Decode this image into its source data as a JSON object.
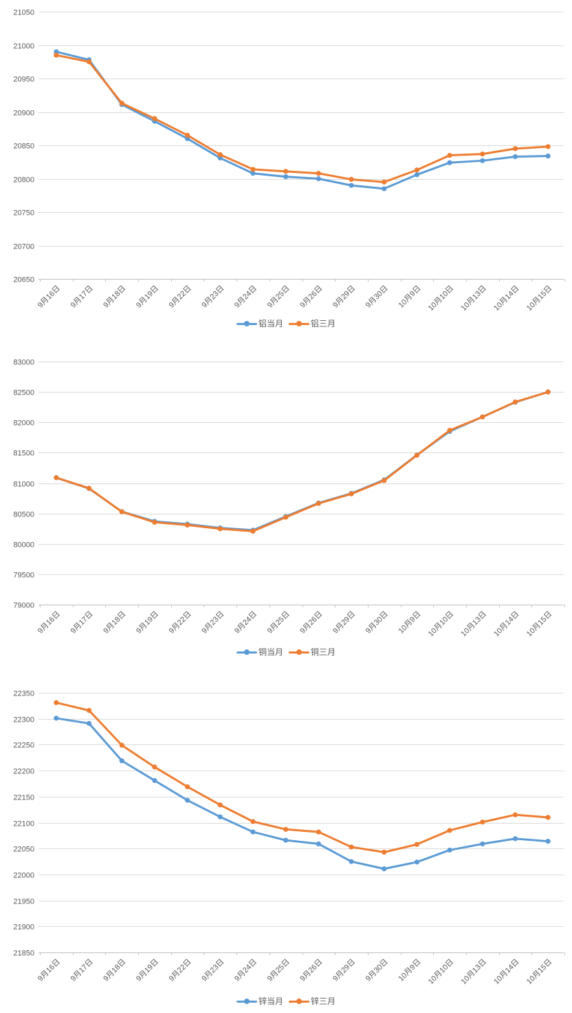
{
  "styles": {
    "grid_color": "#d9d9d9",
    "axis_color": "#bfbfbf",
    "tick_label_color": "#595959",
    "series_blue": "#5b9bd5",
    "series_orange": "#ed7d31",
    "background": "#ffffff"
  },
  "chart_data": [
    {
      "type": "line",
      "title": "",
      "xlabel": "",
      "ylabel": "",
      "grid": true,
      "legend_position": "bottom",
      "ylim": [
        20650,
        21050
      ],
      "ytick_step": 50,
      "categories": [
        "9月16日",
        "9月17日",
        "9月18日",
        "9月19日",
        "9月22日",
        "9月23日",
        "9月24日",
        "9月25日",
        "9月26日",
        "9月29日",
        "9月30日",
        "10月9日",
        "10月10日",
        "10月13日",
        "10月14日",
        "10月15日"
      ],
      "series": [
        {
          "name": "铝当月",
          "color": "#5b9bd5",
          "values": [
            20990,
            20978,
            20911,
            20886,
            20860,
            20831,
            20808,
            20803,
            20800,
            20790,
            20785,
            20806,
            20824,
            20827,
            20833,
            20834
          ]
        },
        {
          "name": "铝三月",
          "color": "#ed7d31",
          "values": [
            20985,
            20975,
            20913,
            20890,
            20865,
            20836,
            20814,
            20811,
            20808,
            20799,
            20795,
            20813,
            20835,
            20837,
            20845,
            20848
          ]
        }
      ]
    },
    {
      "type": "line",
      "title": "",
      "xlabel": "",
      "ylabel": "",
      "grid": true,
      "legend_position": "bottom",
      "ylim": [
        79000,
        83000
      ],
      "ytick_step": 500,
      "categories": [
        "9月16日",
        "9月17日",
        "9月18日",
        "9月19日",
        "9月22日",
        "9月23日",
        "9月24日",
        "9月25日",
        "9月26日",
        "9月29日",
        "9月30日",
        "10月9日",
        "10月10日",
        "10月13日",
        "10月14日",
        "10月15日"
      ],
      "series": [
        {
          "name": "铜当月",
          "color": "#5b9bd5",
          "values": [
            81090,
            80910,
            80530,
            80370,
            80325,
            80262,
            80225,
            80450,
            80672,
            80830,
            81052,
            81462,
            81850,
            82090,
            82330,
            82500
          ]
        },
        {
          "name": "铜三月",
          "color": "#ed7d31",
          "values": [
            81088,
            80915,
            80528,
            80355,
            80310,
            80248,
            80208,
            80438,
            80665,
            80822,
            81042,
            81458,
            81868,
            82088,
            82335,
            82498
          ]
        }
      ]
    },
    {
      "type": "line",
      "title": "",
      "xlabel": "",
      "ylabel": "",
      "grid": true,
      "legend_position": "bottom",
      "ylim": [
        21850,
        22350
      ],
      "ytick_step": 50,
      "categories": [
        "9月16日",
        "9月17日",
        "9月18日",
        "9月19日",
        "9月22日",
        "9月23日",
        "9月24日",
        "9月25日",
        "9月26日",
        "9月29日",
        "9月30日",
        "10月9日",
        "10月10日",
        "10月13日",
        "10月14日",
        "10月15日"
      ],
      "series": [
        {
          "name": "锌当月",
          "color": "#5b9bd5",
          "values": [
            22301,
            22291,
            22219,
            22181,
            22143,
            22111,
            22082,
            22066,
            22059,
            22025,
            22011,
            22024,
            22047,
            22059,
            22069,
            22064
          ]
        },
        {
          "name": "锌三月",
          "color": "#ed7d31",
          "values": [
            22331,
            22316,
            22249,
            22207,
            22169,
            22134,
            22102,
            22087,
            22082,
            22053,
            22043,
            22058,
            22085,
            22101,
            22115,
            22110
          ]
        }
      ]
    }
  ]
}
